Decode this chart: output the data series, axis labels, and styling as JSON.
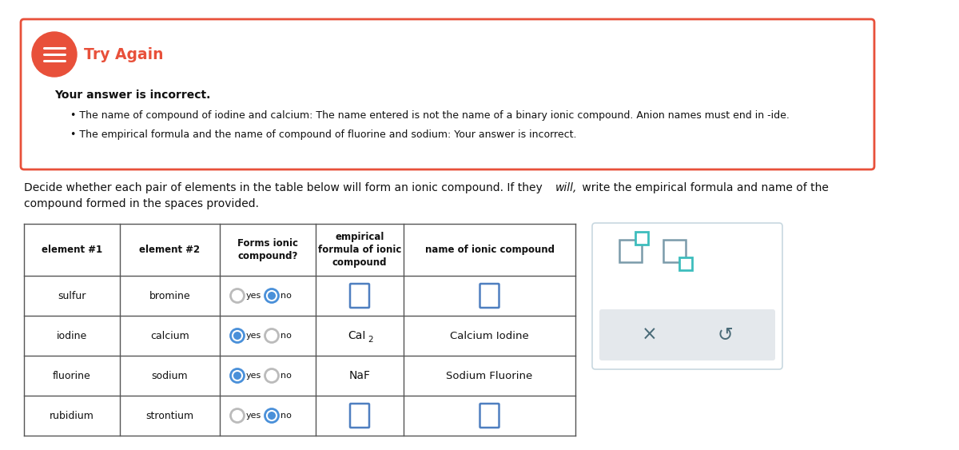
{
  "try_again_title": "Try Again",
  "try_again_color": "#e8503a",
  "feedback_line1": "Your answer is incorrect.",
  "bullet1": "The name of compound of iodine and calcium: The name entered is not the name of a binary ionic compound. Anion names must end in -ide.",
  "bullet2": "The empirical formula and the name of compound of fluorine and sodium: Your answer is incorrect.",
  "instr_before": "Decide whether each pair of elements in the table below will form an ionic compound. If they ",
  "instr_italic": "will,",
  "instr_after": " write the empirical formula and name of the",
  "instr_line2": "compound formed in the spaces provided.",
  "col_headers": [
    "element #1",
    "element #2",
    "Forms ionic\ncompound?",
    "empirical\nformula of ionic\ncompound",
    "name of ionic compound"
  ],
  "rows": [
    {
      "e1": "sulfur",
      "e2": "bromine",
      "yes_sel": false,
      "no_sel": true,
      "formula": "",
      "name": "",
      "show_box": true
    },
    {
      "e1": "iodine",
      "e2": "calcium",
      "yes_sel": true,
      "no_sel": false,
      "formula": "CaI",
      "name": "Calcium Iodine",
      "show_box": false
    },
    {
      "e1": "fluorine",
      "e2": "sodium",
      "yes_sel": true,
      "no_sel": false,
      "formula": "NaF",
      "name": "Sodium Fluorine",
      "show_box": false
    },
    {
      "e1": "rubidium",
      "e2": "strontium",
      "yes_sel": false,
      "no_sel": true,
      "formula": "",
      "name": "",
      "show_box": true
    }
  ],
  "feedback_border": "#e8503a",
  "radio_blue": "#4a90d9",
  "radio_gray": "#bbbbbb",
  "input_box_blue": "#4f7fc0",
  "teal": "#3dbdbd",
  "icon_gray": "#7a9baa",
  "panel_border": "#c8d8e0",
  "panel_gray_bar": "#e4e8ec",
  "bg": "#ffffff"
}
